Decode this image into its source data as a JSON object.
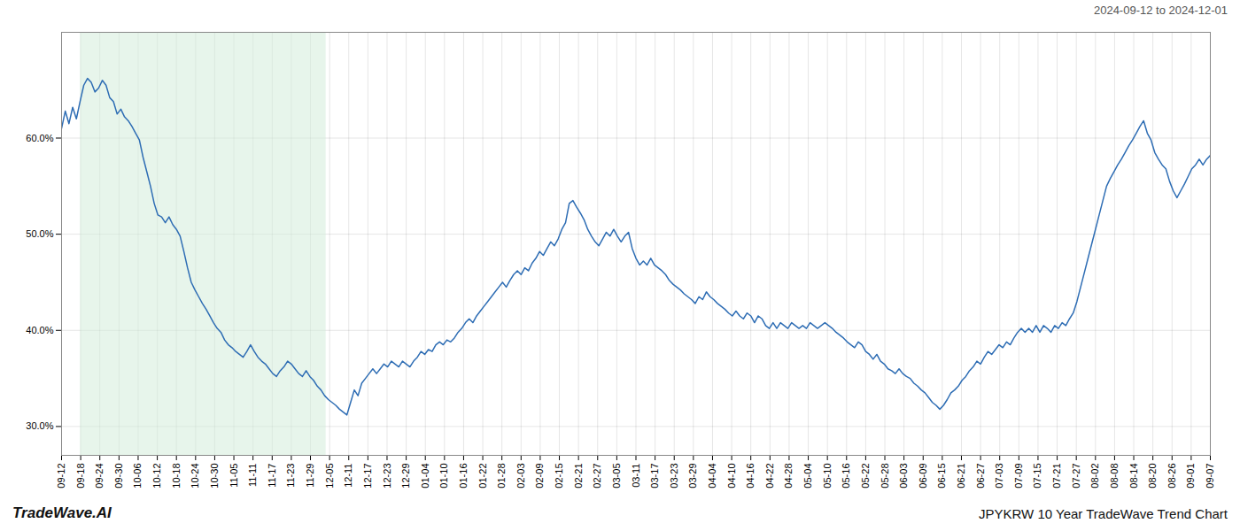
{
  "chart_data": {
    "type": "line",
    "title": "JPYKRW 10 Year TradeWave Trend Chart",
    "subtitle": "2024-09-12 to 2024-12-01",
    "annotations": [
      "TradeWave.AI"
    ],
    "color": "#2e6db4",
    "grid": true,
    "xlim": [
      0,
      310
    ],
    "xticks": [
      {
        "value": 0,
        "label": "09-12"
      },
      {
        "value": 5.166666666666667,
        "label": "09-18"
      },
      {
        "value": 10.333333333333334,
        "label": "09-24"
      },
      {
        "value": 15.5,
        "label": "09-30"
      },
      {
        "value": 20.666666666666668,
        "label": "10-06"
      },
      {
        "value": 25.833333333333332,
        "label": "10-12"
      },
      {
        "value": 31,
        "label": "10-18"
      },
      {
        "value": 36.166666666666664,
        "label": "10-24"
      },
      {
        "value": 41.333333333333336,
        "label": "10-30"
      },
      {
        "value": 46.5,
        "label": "11-05"
      },
      {
        "value": 51.666666666666664,
        "label": "11-11"
      },
      {
        "value": 56.833333333333336,
        "label": "11-17"
      },
      {
        "value": 62,
        "label": "11-23"
      },
      {
        "value": 67.16666666666667,
        "label": "11-29"
      },
      {
        "value": 72.33333333333333,
        "label": "12-05"
      },
      {
        "value": 77.5,
        "label": "12-11"
      },
      {
        "value": 82.66666666666667,
        "label": "12-17"
      },
      {
        "value": 87.83333333333333,
        "label": "12-23"
      },
      {
        "value": 93,
        "label": "12-29"
      },
      {
        "value": 98.16666666666667,
        "label": "01-04"
      },
      {
        "value": 103.33333333333333,
        "label": "01-10"
      },
      {
        "value": 108.5,
        "label": "01-16"
      },
      {
        "value": 113.66666666666667,
        "label": "01-22"
      },
      {
        "value": 118.83333333333333,
        "label": "01-28"
      },
      {
        "value": 124,
        "label": "02-03"
      },
      {
        "value": 129.16666666666666,
        "label": "02-09"
      },
      {
        "value": 134.33333333333334,
        "label": "02-15"
      },
      {
        "value": 139.5,
        "label": "02-21"
      },
      {
        "value": 144.66666666666666,
        "label": "02-27"
      },
      {
        "value": 149.83333333333334,
        "label": "03-05"
      },
      {
        "value": 155,
        "label": "03-11"
      },
      {
        "value": 160.16666666666666,
        "label": "03-17"
      },
      {
        "value": 165.33333333333334,
        "label": "03-23"
      },
      {
        "value": 170.5,
        "label": "03-29"
      },
      {
        "value": 175.66666666666666,
        "label": "04-04"
      },
      {
        "value": 180.83333333333334,
        "label": "04-10"
      },
      {
        "value": 186,
        "label": "04-16"
      },
      {
        "value": 191.16666666666666,
        "label": "04-22"
      },
      {
        "value": 196.33333333333334,
        "label": "04-28"
      },
      {
        "value": 201.5,
        "label": "05-04"
      },
      {
        "value": 206.66666666666666,
        "label": "05-10"
      },
      {
        "value": 211.83333333333334,
        "label": "05-16"
      },
      {
        "value": 217,
        "label": "05-22"
      },
      {
        "value": 222.16666666666666,
        "label": "05-28"
      },
      {
        "value": 227.33333333333334,
        "label": "06-03"
      },
      {
        "value": 232.5,
        "label": "06-09"
      },
      {
        "value": 237.66666666666666,
        "label": "06-15"
      },
      {
        "value": 242.83333333333334,
        "label": "06-21"
      },
      {
        "value": 248,
        "label": "06-27"
      },
      {
        "value": 253.16666666666666,
        "label": "07-03"
      },
      {
        "value": 258.3333333333333,
        "label": "07-09"
      },
      {
        "value": 263.5,
        "label": "07-15"
      },
      {
        "value": 268.6666666666667,
        "label": "07-21"
      },
      {
        "value": 273.8333333333333,
        "label": "07-27"
      },
      {
        "value": 279,
        "label": "08-02"
      },
      {
        "value": 284.1666666666667,
        "label": "08-08"
      },
      {
        "value": 289.3333333333333,
        "label": "08-14"
      },
      {
        "value": 294.5,
        "label": "08-20"
      },
      {
        "value": 299.6666666666667,
        "label": "08-26"
      },
      {
        "value": 304.8333333333333,
        "label": "09-01"
      },
      {
        "value": 310,
        "label": "09-07"
      }
    ],
    "ylim": [
      27.0,
      71.0
    ],
    "yticks": [
      {
        "value": 30.0,
        "label": "30.0%"
      },
      {
        "value": 40.0,
        "label": "40.0%"
      },
      {
        "value": 50.0,
        "label": "50.0%"
      },
      {
        "value": 60.0,
        "label": "60.0%"
      }
    ],
    "band": {
      "from": 5.098360655737705,
      "to": 71.37704918032787,
      "color": "#d4edda"
    },
    "values": [
      61.0,
      62.8,
      61.5,
      63.2,
      62.0,
      63.8,
      65.5,
      66.2,
      65.8,
      64.8,
      65.2,
      66.0,
      65.5,
      64.2,
      63.8,
      62.5,
      63.0,
      62.2,
      61.8,
      61.2,
      60.5,
      59.8,
      58.0,
      56.5,
      55.0,
      53.2,
      52.0,
      51.8,
      51.2,
      51.8,
      51.0,
      50.5,
      49.8,
      48.2,
      46.5,
      45.0,
      44.2,
      43.5,
      42.8,
      42.2,
      41.5,
      40.8,
      40.2,
      39.8,
      39.0,
      38.5,
      38.2,
      37.8,
      37.5,
      37.2,
      37.8,
      38.5,
      37.8,
      37.2,
      36.8,
      36.5,
      36.0,
      35.5,
      35.2,
      35.8,
      36.2,
      36.8,
      36.5,
      36.0,
      35.5,
      35.2,
      35.8,
      35.2,
      34.8,
      34.2,
      33.8,
      33.2,
      32.8,
      32.5,
      32.2,
      31.8,
      31.5,
      31.2,
      32.5,
      33.8,
      33.2,
      34.5,
      35.0,
      35.5,
      36.0,
      35.5,
      36.0,
      36.5,
      36.2,
      36.8,
      36.5,
      36.2,
      36.8,
      36.5,
      36.2,
      36.8,
      37.2,
      37.8,
      37.5,
      38.0,
      37.8,
      38.5,
      38.8,
      38.5,
      39.0,
      38.8,
      39.2,
      39.8,
      40.2,
      40.8,
      41.2,
      40.8,
      41.5,
      42.0,
      42.5,
      43.0,
      43.5,
      44.0,
      44.5,
      45.0,
      44.5,
      45.2,
      45.8,
      46.2,
      45.8,
      46.5,
      46.2,
      47.0,
      47.5,
      48.2,
      47.8,
      48.5,
      49.2,
      48.8,
      49.5,
      50.5,
      51.2,
      53.2,
      53.5,
      52.8,
      52.2,
      51.5,
      50.5,
      49.8,
      49.2,
      48.8,
      49.5,
      50.2,
      49.8,
      50.5,
      49.8,
      49.2,
      49.8,
      50.2,
      48.5,
      47.5,
      46.8,
      47.2,
      46.8,
      47.5,
      46.8,
      46.5,
      46.2,
      45.8,
      45.2,
      44.8,
      44.5,
      44.2,
      43.8,
      43.5,
      43.2,
      42.8,
      43.5,
      43.2,
      44.0,
      43.5,
      43.2,
      42.8,
      42.5,
      42.2,
      41.8,
      41.5,
      42.0,
      41.5,
      41.2,
      41.8,
      41.5,
      40.8,
      41.5,
      41.2,
      40.5,
      40.2,
      40.8,
      40.2,
      40.8,
      40.5,
      40.2,
      40.8,
      40.5,
      40.2,
      40.5,
      40.2,
      40.8,
      40.5,
      40.2,
      40.5,
      40.8,
      40.5,
      40.2,
      39.8,
      39.5,
      39.2,
      38.8,
      38.5,
      38.2,
      38.8,
      38.5,
      37.8,
      37.5,
      37.0,
      37.5,
      36.8,
      36.5,
      36.0,
      35.8,
      35.5,
      36.0,
      35.5,
      35.2,
      35.0,
      34.5,
      34.2,
      33.8,
      33.5,
      33.0,
      32.5,
      32.2,
      31.8,
      32.2,
      32.8,
      33.5,
      33.8,
      34.2,
      34.8,
      35.2,
      35.8,
      36.2,
      36.8,
      36.5,
      37.2,
      37.8,
      37.5,
      38.0,
      38.5,
      38.2,
      38.8,
      38.5,
      39.2,
      39.8,
      40.2,
      39.8,
      40.2,
      39.8,
      40.5,
      39.8,
      40.5,
      40.2,
      39.8,
      40.5,
      40.2,
      40.8,
      40.5,
      41.2,
      41.8,
      43.0,
      44.5,
      46.0,
      47.5,
      49.0,
      50.5,
      52.0,
      53.5,
      55.0,
      55.8,
      56.5,
      57.2,
      57.8,
      58.5,
      59.2,
      59.8,
      60.5,
      61.2,
      61.8,
      60.5,
      59.8,
      58.5,
      57.8,
      57.2,
      56.8,
      55.5,
      54.5,
      53.8,
      54.5,
      55.2,
      56.0,
      56.8,
      57.2,
      57.8,
      57.2,
      57.8,
      58.2
    ]
  }
}
